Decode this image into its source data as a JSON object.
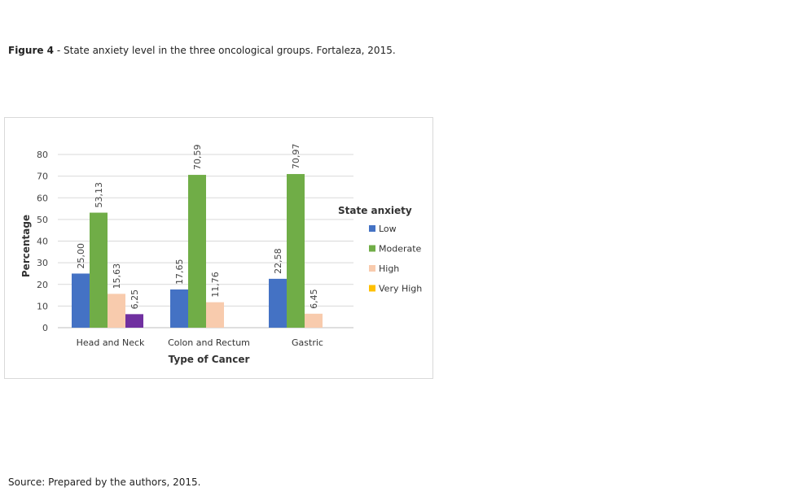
{
  "caption": {
    "label": "Figure 4",
    "separator": " - ",
    "text": "State anxiety level in the three oncological groups. Fortaleza, 2015."
  },
  "source": "Source: Prepared by the authors, 2015.",
  "chart_data": {
    "type": "bar",
    "title": "",
    "xlabel": "Type of Cancer",
    "ylabel": "Percentage",
    "ylim": [
      0,
      80
    ],
    "yticks": [
      "0",
      "10",
      "20",
      "30",
      "40",
      "50",
      "60",
      "70",
      "80"
    ],
    "categories": [
      "Head and Neck",
      "Colon and Rectum",
      "Gastric"
    ],
    "grid": true,
    "legend_title": "State anxiety",
    "legend_position": "right",
    "series": [
      {
        "name": "Low",
        "color": "#4472c4",
        "values": [
          25.0,
          17.65,
          22.58
        ],
        "labels": [
          "25,00",
          "17,65",
          "22,58"
        ]
      },
      {
        "name": "Moderate",
        "color": "#70ad47",
        "values": [
          53.13,
          70.59,
          70.97
        ],
        "labels": [
          "53,13",
          "70,59",
          "70,97"
        ]
      },
      {
        "name": "High",
        "color": "#f8cbad",
        "values": [
          15.63,
          11.76,
          6.45
        ],
        "labels": [
          "15,63",
          "11,76",
          "6,45"
        ]
      },
      {
        "name": "Very High",
        "color": "#ffc000",
        "bar_color": "#7030a0",
        "values": [
          6.25,
          null,
          null
        ],
        "labels": [
          "6,25",
          null,
          null
        ]
      }
    ]
  }
}
